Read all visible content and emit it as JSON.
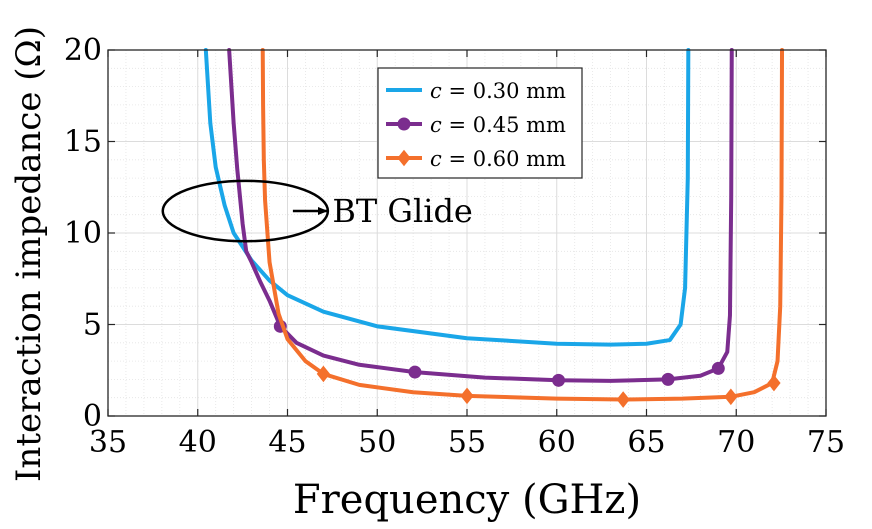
{
  "chart_data": {
    "type": "line",
    "xlabel": "Frequency (GHz)",
    "ylabel": "Interaction impedance (Ω)",
    "xlim": [
      35,
      75
    ],
    "ylim": [
      0,
      20
    ],
    "xticks": [
      35,
      40,
      45,
      50,
      55,
      60,
      65,
      70,
      75
    ],
    "yticks": [
      0,
      5,
      10,
      15,
      20
    ],
    "grid": true,
    "legend_position": "top-right",
    "series": [
      {
        "name": "c = 0.30 mm",
        "legend_var": "c",
        "legend_eq": "= 0.30 mm",
        "color": "#1AA6E8",
        "marker": "none",
        "x": [
          40.45,
          40.7,
          41.0,
          41.5,
          42.0,
          43.0,
          44.0,
          45.0,
          47.0,
          50.0,
          55.0,
          60.0,
          63.0,
          65.0,
          66.3,
          66.9,
          67.15,
          67.3,
          67.33
        ],
        "y": [
          20,
          16.0,
          13.6,
          11.5,
          10.0,
          8.5,
          7.4,
          6.6,
          5.7,
          4.9,
          4.25,
          3.95,
          3.9,
          3.95,
          4.15,
          5.0,
          7.0,
          13.0,
          20
        ]
      },
      {
        "name": "c = 0.45 mm",
        "legend_var": "c",
        "legend_eq": "= 0.45 mm",
        "color": "#7B2D8E",
        "marker": "circle",
        "x": [
          41.75,
          42.0,
          42.2,
          42.5,
          42.7,
          43.0,
          43.5,
          44.0,
          44.6,
          45.5,
          47.0,
          49.0,
          52.1,
          56.0,
          60.1,
          63.0,
          66.2,
          68.0,
          69.0,
          69.5,
          69.65,
          69.72,
          69.75
        ],
        "y": [
          20,
          16.0,
          13.5,
          10.5,
          9.0,
          8.4,
          7.3,
          6.3,
          4.9,
          4.0,
          3.3,
          2.8,
          2.4,
          2.1,
          1.95,
          1.92,
          2.0,
          2.2,
          2.6,
          3.5,
          5.5,
          12.0,
          20
        ],
        "markers_x": [
          44.6,
          52.1,
          60.1,
          66.2,
          69.0
        ],
        "markers_y": [
          4.9,
          2.4,
          1.95,
          2.0,
          2.6
        ]
      },
      {
        "name": "c = 0.60 mm",
        "legend_var": "c",
        "legend_eq": "= 0.60 mm",
        "color": "#F4702C",
        "marker": "diamond",
        "x": [
          43.62,
          43.64,
          43.68,
          43.75,
          44.0,
          44.5,
          45.0,
          46.0,
          47.0,
          49.0,
          52.0,
          55.0,
          60.0,
          63.7,
          67.0,
          69.7,
          71.0,
          72.0,
          72.3,
          72.45,
          72.52,
          72.55
        ],
        "y": [
          20,
          17.0,
          14.0,
          11.8,
          8.4,
          5.6,
          4.2,
          3.0,
          2.3,
          1.7,
          1.3,
          1.1,
          0.95,
          0.9,
          0.95,
          1.05,
          1.3,
          1.8,
          3.0,
          6.0,
          12.0,
          20
        ],
        "markers_x": [
          47.0,
          55.0,
          63.7,
          69.7,
          72.1
        ],
        "markers_y": [
          2.3,
          1.1,
          0.9,
          1.05,
          1.8
        ]
      }
    ],
    "annotations": [
      {
        "text": "BT Glide",
        "ellipse_center": [
          42.65,
          11.2
        ],
        "ellipse_rx": 4.6,
        "ellipse_ry": 1.65,
        "arrow_from": [
          45.3,
          11.2
        ],
        "arrow_to": [
          47.2,
          11.2
        ],
        "text_anchor": [
          47.5,
          11.2
        ]
      }
    ]
  }
}
